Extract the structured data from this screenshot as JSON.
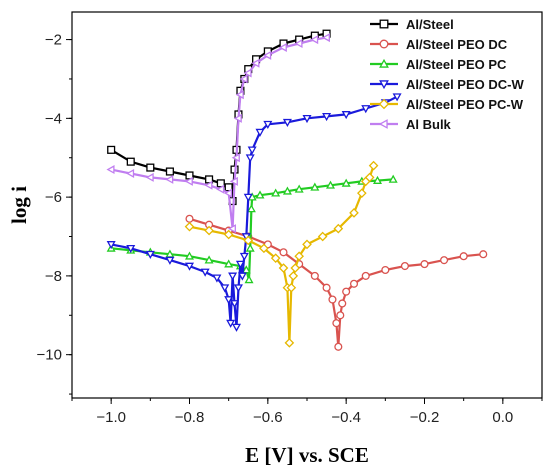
{
  "chart_data": {
    "type": "line",
    "title": "",
    "xlabel": "E [V] vs. SCE",
    "ylabel": "log i",
    "xlim": [
      -1.1,
      0.1
    ],
    "ylim": [
      -11.1,
      -1.3
    ],
    "xticks": [
      -1.0,
      -0.8,
      -0.6,
      -0.4,
      -0.2,
      0.0
    ],
    "xtick_labels": [
      "−1.0",
      "−0.8",
      "−0.6",
      "−0.4",
      "−0.2",
      "0.0"
    ],
    "yticks": [
      -10,
      -8,
      -6,
      -4,
      -2
    ],
    "ytick_labels": [
      "−10",
      "−8",
      "−6",
      "−4",
      "−2"
    ],
    "grid": false,
    "legend_position": "top-right",
    "series": [
      {
        "name": "Al/Steel",
        "color": "#000000",
        "marker": "square",
        "x": [
          -1.0,
          -0.95,
          -0.9,
          -0.85,
          -0.8,
          -0.75,
          -0.72,
          -0.7,
          -0.69,
          -0.685,
          -0.68,
          -0.675,
          -0.67,
          -0.66,
          -0.65,
          -0.63,
          -0.6,
          -0.56,
          -0.52,
          -0.48,
          -0.45
        ],
        "y": [
          -4.8,
          -5.1,
          -5.25,
          -5.35,
          -5.45,
          -5.55,
          -5.65,
          -5.75,
          -6.1,
          -5.3,
          -4.8,
          -3.9,
          -3.3,
          -3.0,
          -2.75,
          -2.5,
          -2.3,
          -2.1,
          -2.0,
          -1.9,
          -1.85
        ]
      },
      {
        "name": "Al/Steel PEO DC",
        "color": "#d9534f",
        "marker": "circle",
        "x": [
          -0.8,
          -0.75,
          -0.7,
          -0.65,
          -0.6,
          -0.56,
          -0.52,
          -0.48,
          -0.45,
          -0.435,
          -0.425,
          -0.42,
          -0.415,
          -0.41,
          -0.4,
          -0.38,
          -0.35,
          -0.3,
          -0.25,
          -0.2,
          -0.15,
          -0.1,
          -0.05
        ],
        "y": [
          -6.55,
          -6.7,
          -6.85,
          -7.0,
          -7.2,
          -7.4,
          -7.7,
          -8.0,
          -8.3,
          -8.6,
          -9.2,
          -9.8,
          -9.0,
          -8.7,
          -8.4,
          -8.2,
          -8.0,
          -7.85,
          -7.75,
          -7.7,
          -7.6,
          -7.5,
          -7.45
        ]
      },
      {
        "name": "Al/Steel PEO PC",
        "color": "#22cc22",
        "marker": "triangle-up",
        "x": [
          -1.0,
          -0.95,
          -0.9,
          -0.85,
          -0.8,
          -0.75,
          -0.7,
          -0.67,
          -0.655,
          -0.648,
          -0.645,
          -0.642,
          -0.64,
          -0.62,
          -0.58,
          -0.55,
          -0.52,
          -0.48,
          -0.44,
          -0.4,
          -0.36,
          -0.32,
          -0.28
        ],
        "y": [
          -7.3,
          -7.35,
          -7.4,
          -7.45,
          -7.5,
          -7.6,
          -7.7,
          -7.75,
          -7.85,
          -8.1,
          -7.3,
          -6.3,
          -6.0,
          -5.95,
          -5.9,
          -5.85,
          -5.8,
          -5.75,
          -5.7,
          -5.65,
          -5.6,
          -5.58,
          -5.55
        ]
      },
      {
        "name": "Al/Steel PEO DC-W",
        "color": "#1a1adb",
        "marker": "triangle-down",
        "x": [
          -1.0,
          -0.95,
          -0.9,
          -0.85,
          -0.8,
          -0.76,
          -0.73,
          -0.71,
          -0.7,
          -0.695,
          -0.69,
          -0.685,
          -0.68,
          -0.675,
          -0.67,
          -0.665,
          -0.66,
          -0.655,
          -0.65,
          -0.645,
          -0.64,
          -0.62,
          -0.6,
          -0.55,
          -0.5,
          -0.45,
          -0.4,
          -0.35,
          -0.3,
          -0.27
        ],
        "y": [
          -7.2,
          -7.3,
          -7.45,
          -7.6,
          -7.75,
          -7.9,
          -8.05,
          -8.3,
          -8.6,
          -9.2,
          -8.0,
          -8.7,
          -9.3,
          -8.3,
          -7.7,
          -8.0,
          -7.5,
          -7.0,
          -6.0,
          -5.0,
          -4.8,
          -4.35,
          -4.15,
          -4.1,
          -4.0,
          -3.95,
          -3.9,
          -3.75,
          -3.6,
          -3.45
        ]
      },
      {
        "name": "Al/Steel PEO PC-W",
        "color": "#e6b800",
        "marker": "diamond",
        "x": [
          -0.8,
          -0.75,
          -0.7,
          -0.65,
          -0.61,
          -0.58,
          -0.56,
          -0.55,
          -0.545,
          -0.54,
          -0.535,
          -0.53,
          -0.52,
          -0.5,
          -0.46,
          -0.42,
          -0.38,
          -0.36,
          -0.35,
          -0.34,
          -0.33
        ],
        "y": [
          -6.75,
          -6.85,
          -6.95,
          -7.1,
          -7.3,
          -7.55,
          -7.8,
          -8.3,
          -9.7,
          -8.3,
          -8.0,
          -7.8,
          -7.5,
          -7.2,
          -7.0,
          -6.8,
          -6.4,
          -5.9,
          -5.6,
          -5.5,
          -5.2
        ]
      },
      {
        "name": "Al Bulk",
        "color": "#c07ef0",
        "marker": "triangle-left",
        "x": [
          -1.0,
          -0.95,
          -0.9,
          -0.85,
          -0.8,
          -0.75,
          -0.72,
          -0.7,
          -0.69,
          -0.685,
          -0.68,
          -0.675,
          -0.67,
          -0.66,
          -0.65,
          -0.63,
          -0.6,
          -0.56,
          -0.52,
          -0.48,
          -0.45
        ],
        "y": [
          -5.3,
          -5.4,
          -5.5,
          -5.55,
          -5.6,
          -5.7,
          -5.8,
          -5.9,
          -6.8,
          -5.6,
          -5.0,
          -4.0,
          -3.4,
          -3.0,
          -2.85,
          -2.6,
          -2.4,
          -2.2,
          -2.1,
          -2.0,
          -1.95
        ]
      }
    ]
  }
}
